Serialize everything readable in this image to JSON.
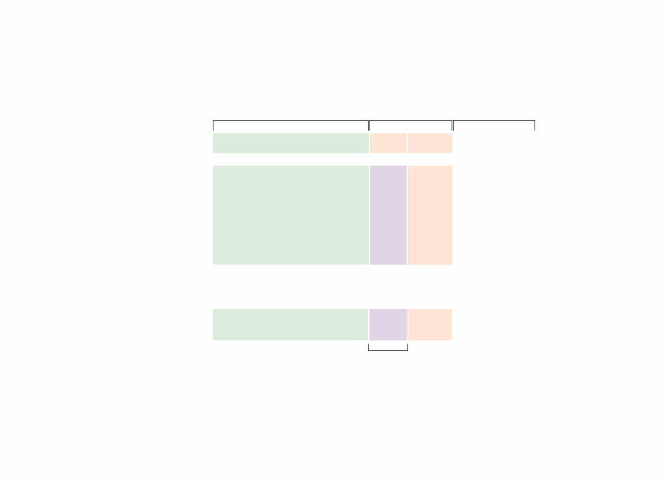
{
  "colors": {
    "background": "#fefefe",
    "green": "#dcebdb",
    "orange": "#fde4d5",
    "purple": "#e0d5e7",
    "bracket": "#3a3a3a"
  },
  "rows": [
    {
      "cells": [
        "green",
        "orange",
        "orange"
      ]
    },
    {
      "cells": [
        "green",
        "purple",
        "orange"
      ]
    },
    {
      "cells": [
        "green",
        "purple",
        "orange"
      ]
    }
  ]
}
